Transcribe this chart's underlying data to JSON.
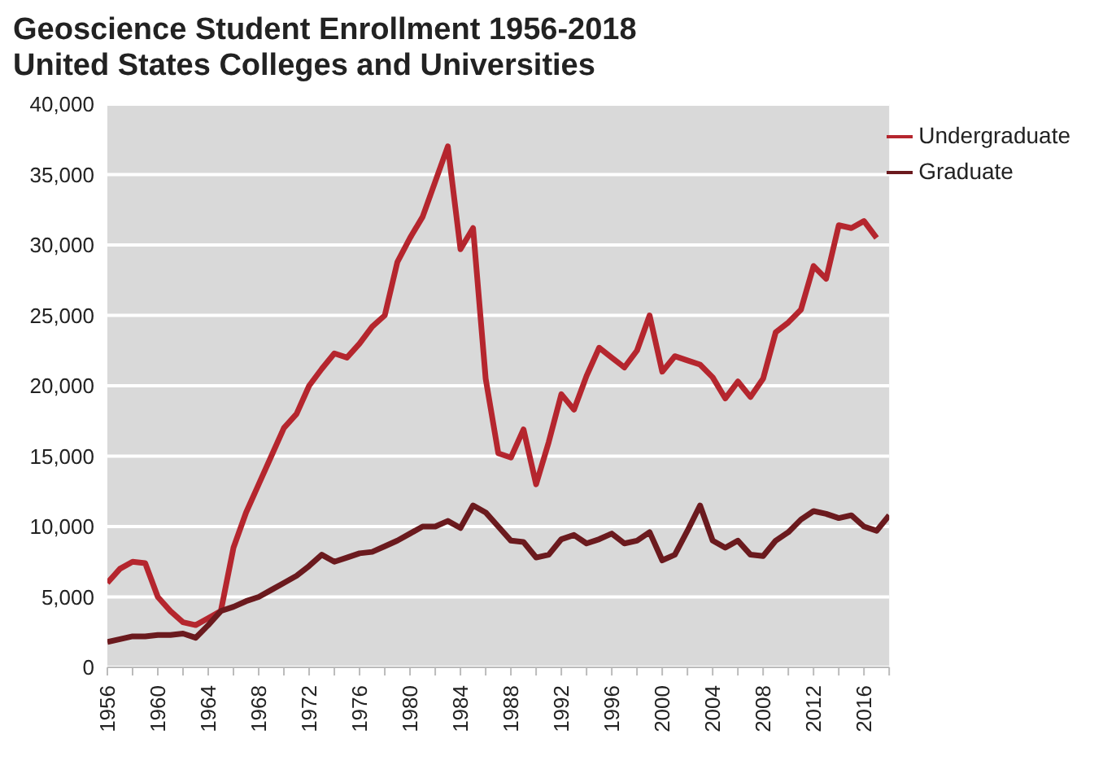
{
  "chart_data": {
    "type": "line",
    "title": "Geoscience Student Enrollment 1956-2018",
    "subtitle": "United States Colleges and Universities",
    "x": [
      1956,
      1957,
      1958,
      1959,
      1960,
      1961,
      1962,
      1963,
      1964,
      1965,
      1966,
      1967,
      1968,
      1969,
      1970,
      1971,
      1972,
      1973,
      1974,
      1975,
      1976,
      1977,
      1978,
      1979,
      1980,
      1981,
      1982,
      1983,
      1984,
      1985,
      1986,
      1987,
      1988,
      1989,
      1990,
      1991,
      1992,
      1993,
      1994,
      1995,
      1996,
      1997,
      1998,
      1999,
      2000,
      2001,
      2002,
      2003,
      2004,
      2005,
      2006,
      2007,
      2008,
      2009,
      2010,
      2011,
      2012,
      2013,
      2014,
      2015,
      2016,
      2017,
      2018
    ],
    "series": [
      {
        "name": "Undergraduate",
        "color": "#b5262e",
        "values": [
          6000,
          7000,
          7500,
          7400,
          5000,
          4000,
          3200,
          3000,
          3500,
          4000,
          8500,
          11000,
          13000,
          15000,
          17000,
          18000,
          20000,
          21200,
          22300,
          22000,
          23000,
          24200,
          25000,
          28800,
          30500,
          32000,
          34500,
          37000,
          29700,
          31200,
          20500,
          15200,
          14900,
          16900,
          13000,
          16000,
          19400,
          18300,
          20700,
          22700,
          22000,
          21300,
          22500,
          25000,
          21000,
          22100,
          21800,
          21500,
          20600,
          19100,
          20300,
          19200,
          20500,
          23800,
          24500,
          25400,
          28500,
          27600,
          31400,
          31200,
          31700,
          30500,
          null
        ]
      },
      {
        "name": "Graduate",
        "color": "#6b1a1e",
        "values": [
          1800,
          2000,
          2200,
          2200,
          2300,
          2300,
          2400,
          2100,
          3000,
          4000,
          4300,
          4700,
          5000,
          5500,
          6000,
          6500,
          7200,
          8000,
          7500,
          7800,
          8100,
          8200,
          8600,
          9000,
          9500,
          10000,
          10000,
          10400,
          9900,
          11500,
          11000,
          10000,
          9000,
          8900,
          7800,
          8000,
          9100,
          9400,
          8800,
          9100,
          9500,
          8800,
          9000,
          9600,
          7600,
          8000,
          9700,
          11500,
          9000,
          8500,
          9000,
          8000,
          7900,
          9000,
          9600,
          10500,
          11100,
          10900,
          10600,
          10800,
          10000,
          9700,
          10800
        ]
      }
    ],
    "xlim": [
      1956,
      2018
    ],
    "xticks": [
      1956,
      {
        "value": 1958,
        "label": null
      },
      1960,
      {
        "value": 1962,
        "label": null
      },
      1964,
      {
        "value": 1966,
        "label": null
      },
      1968,
      {
        "value": 1970,
        "label": null
      },
      1972,
      {
        "value": 1974,
        "label": null
      },
      1976,
      {
        "value": 1978,
        "label": null
      },
      1980,
      {
        "value": 1982,
        "label": null
      },
      1984,
      {
        "value": 1986,
        "label": null
      },
      1988,
      {
        "value": 1990,
        "label": null
      },
      1992,
      {
        "value": 1994,
        "label": null
      },
      1996,
      {
        "value": 1998,
        "label": null
      },
      2000,
      {
        "value": 2002,
        "label": null
      },
      2004,
      {
        "value": 2006,
        "label": null
      },
      2008,
      {
        "value": 2010,
        "label": null
      },
      2012,
      {
        "value": 2014,
        "label": null
      },
      2016,
      {
        "value": 2018,
        "label": null
      }
    ],
    "ylim": [
      0,
      40000
    ],
    "yticks": [
      0,
      {
        "value": 5000,
        "label": "5,000"
      },
      {
        "value": 10000,
        "label": "10,000"
      },
      {
        "value": 15000,
        "label": "15,000"
      },
      {
        "value": 20000,
        "label": "20,000"
      },
      {
        "value": 25000,
        "label": "25,000"
      },
      {
        "value": 30000,
        "label": "30,000"
      },
      {
        "value": 35000,
        "label": "35,000"
      },
      {
        "value": 40000,
        "label": "40,000"
      }
    ],
    "grid": "y",
    "legend": "top right"
  }
}
